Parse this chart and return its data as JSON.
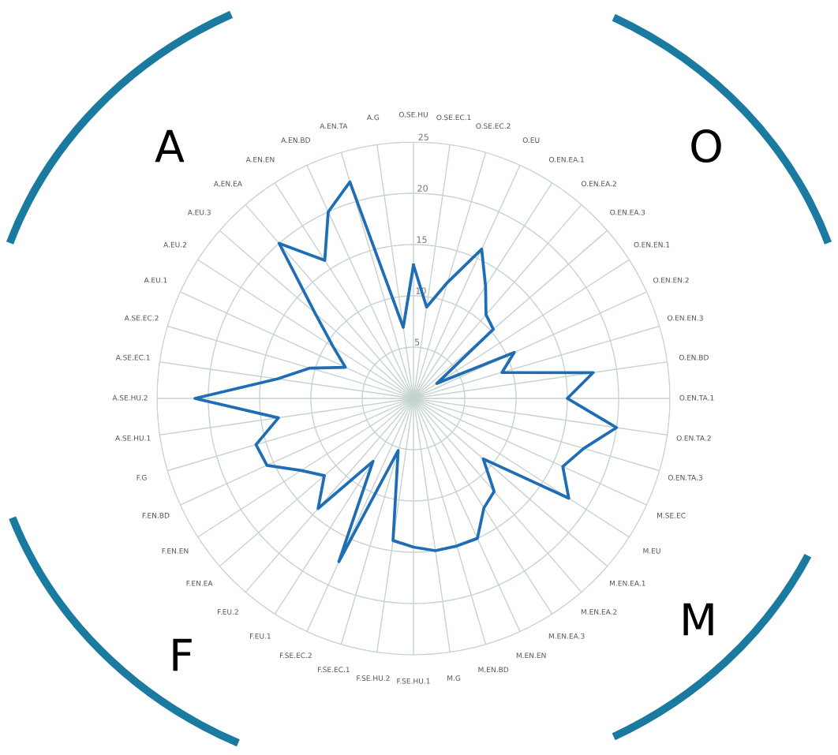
{
  "chart_data": {
    "type": "radar",
    "categories": [
      "O.SE.HU",
      "O.SE.EC.1",
      "O.SE.EC.2",
      "O.EU",
      "O.EN.EA.1",
      "O.EN.EA.2",
      "O.EN.EA.3",
      "O.EN.EN.1",
      "O.EN.EN.2",
      "O.EN.EN.3",
      "O.EN.BD",
      "O.EN.TA.1",
      "O.EN.TA.2",
      "O.EN.TA.3",
      "M.SE.EC",
      "M.EU",
      "M.EN.EA.1",
      "M.EN.EA.2",
      "M.EN.EA.3",
      "M.EN.EN",
      "M.EN.BD",
      "M.G",
      "F.SE.HU.1",
      "F.SE.HU.2",
      "F.SE.EC.1",
      "F.SE.EC.2",
      "F.EU.1",
      "F.EU.2",
      "F.EN.EA",
      "F.EN.EN",
      "F.EN.BD",
      "F.G",
      "A.SE.HU.1",
      "A.SE.HU.2",
      "A.SE.EC.1",
      "A.SE.EC.2",
      "A.EU.1",
      "A.EU.2",
      "A.EU.3",
      "A.EN.EA",
      "A.EN.EN",
      "A.EN.BD",
      "A.EN.TA",
      "A.G"
    ],
    "series": [
      {
        "color": "#1f6db5",
        "values": [
          13,
          9,
          11.8,
          16,
          13,
          10.8,
          10.3,
          2.7,
          10.8,
          9,
          17.7,
          15,
          20,
          17.3,
          16,
          18,
          9,
          12,
          12.7,
          15,
          15,
          15,
          14.5,
          14,
          5.3,
          17.5,
          7.3,
          14.2,
          11.5,
          13,
          15.7,
          16,
          13.3,
          21.3,
          13.4,
          10.5,
          7.3,
          9.3,
          12.7,
          20,
          16,
          20,
          22,
          7
        ]
      }
    ],
    "ylim": [
      0,
      25
    ],
    "yticks": [
      5,
      10,
      15,
      20,
      25
    ],
    "grid": true,
    "legend": false,
    "marker": "none",
    "line_style": "solid",
    "annotations": [
      "A",
      "O",
      "M",
      "F"
    ]
  }
}
